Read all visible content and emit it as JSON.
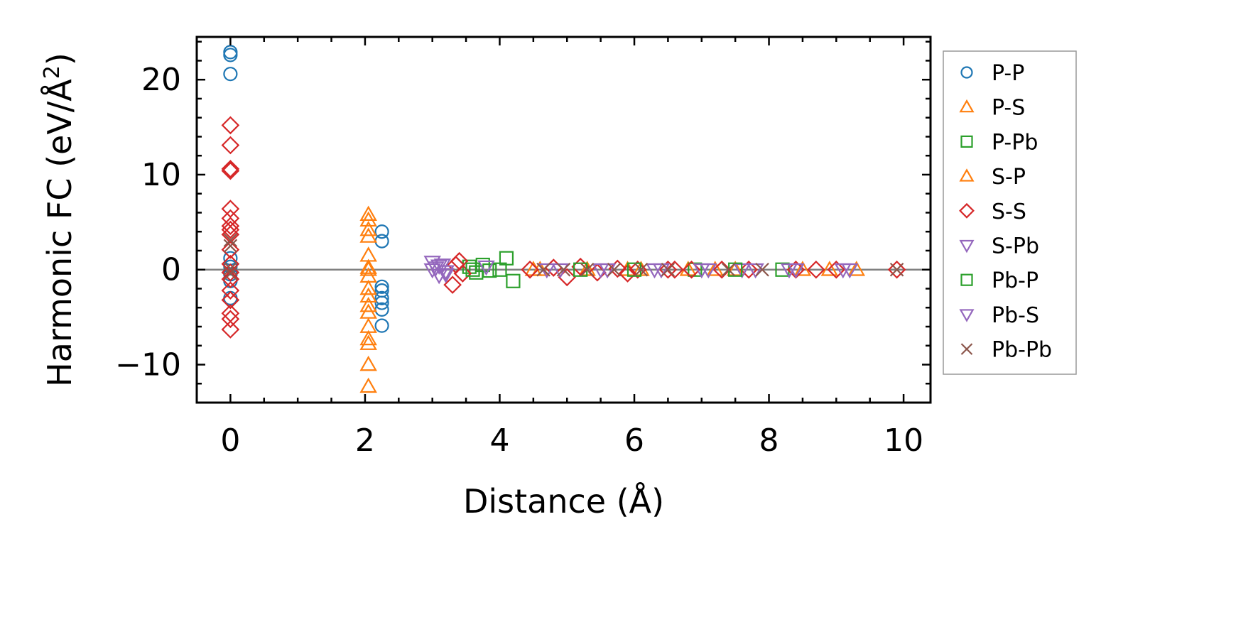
{
  "chart_data": {
    "type": "scatter",
    "title": "",
    "xlabel": "Distance (Å)",
    "ylabel_main": "Harmonic FC (eV/Å",
    "ylabel_sup": "2",
    "ylabel_end": ")",
    "xlim": [
      -0.5,
      10.4
    ],
    "ylim": [
      -14,
      24.5
    ],
    "x_ticks": [
      0,
      2,
      4,
      6,
      8,
      10
    ],
    "x_tick_labels": [
      "0",
      "2",
      "4",
      "6",
      "8",
      "10"
    ],
    "y_ticks": [
      -10,
      0,
      10,
      20
    ],
    "y_tick_labels": [
      "−10",
      "0",
      "10",
      "20"
    ],
    "x_minor_step": 0.5,
    "y_minor_step": 2,
    "grid": false,
    "zero_line": true,
    "legend_position": "outside-right",
    "colors": {
      "blue": "#1f77b4",
      "orange": "#ff7f0e",
      "green": "#2ca02c",
      "red": "#d62728",
      "purple": "#9467bd",
      "brown": "#8c564b",
      "zero_line": "#808080"
    },
    "series": [
      {
        "name": "P-P",
        "marker": "circle",
        "color": "#1f77b4",
        "points": [
          [
            0,
            22.9
          ],
          [
            0,
            22.6
          ],
          [
            0,
            20.6
          ],
          [
            0,
            1.2
          ],
          [
            0,
            0.3
          ],
          [
            0,
            -0.5
          ],
          [
            0,
            -1.2
          ],
          [
            0,
            -3.0
          ],
          [
            2.25,
            4.0
          ],
          [
            2.25,
            3.0
          ],
          [
            2.25,
            -1.8
          ],
          [
            2.25,
            -2.2
          ],
          [
            2.25,
            -3.0
          ],
          [
            2.25,
            -3.5
          ],
          [
            2.25,
            -4.2
          ],
          [
            2.25,
            -5.9
          ]
        ]
      },
      {
        "name": "P-S",
        "marker": "triangle-up",
        "color": "#ff7f0e",
        "points": [
          [
            2.05,
            5.8
          ],
          [
            2.05,
            5.2
          ],
          [
            2.05,
            4.2
          ],
          [
            2.05,
            3.5
          ],
          [
            2.05,
            1.5
          ],
          [
            2.05,
            0.2
          ],
          [
            2.05,
            -0.7
          ],
          [
            2.05,
            -2.0
          ],
          [
            2.05,
            -2.8
          ],
          [
            2.05,
            -3.8
          ],
          [
            2.05,
            -4.5
          ],
          [
            2.05,
            -6.0
          ],
          [
            2.05,
            -7.3
          ],
          [
            2.05,
            -7.8
          ],
          [
            2.05,
            -10.0
          ],
          [
            2.05,
            -12.3
          ],
          [
            4.6,
            0.0
          ],
          [
            5.3,
            0.0
          ],
          [
            6.1,
            0.0
          ],
          [
            6.8,
            0.0
          ],
          [
            7.5,
            0.0
          ],
          [
            8.5,
            0.0
          ],
          [
            9.3,
            0.0
          ]
        ]
      },
      {
        "name": "P-Pb",
        "marker": "square",
        "color": "#2ca02c",
        "points": [
          [
            3.55,
            0.3
          ],
          [
            3.65,
            -0.3
          ],
          [
            3.75,
            0.5
          ],
          [
            3.85,
            -0.1
          ],
          [
            4.0,
            0.0
          ],
          [
            6.9,
            0.0
          ],
          [
            8.2,
            0.0
          ]
        ]
      },
      {
        "name": "S-P",
        "marker": "triangle-up",
        "color": "#ff7f0e",
        "points": [
          [
            2.05,
            0.0
          ],
          [
            4.5,
            0.0
          ],
          [
            5.9,
            0.0
          ],
          [
            7.2,
            0.0
          ],
          [
            8.9,
            0.0
          ]
        ]
      },
      {
        "name": "S-S",
        "marker": "diamond",
        "color": "#d62728",
        "points": [
          [
            0,
            15.2
          ],
          [
            0,
            13.1
          ],
          [
            0,
            10.6
          ],
          [
            0,
            10.4
          ],
          [
            0,
            6.4
          ],
          [
            0,
            5.4
          ],
          [
            0,
            4.6
          ],
          [
            0,
            4.2
          ],
          [
            0,
            3.7
          ],
          [
            0,
            2.1
          ],
          [
            0,
            0.6
          ],
          [
            0,
            -0.3
          ],
          [
            0,
            -1.0
          ],
          [
            0,
            -2.2
          ],
          [
            0,
            -3.2
          ],
          [
            0,
            -4.6
          ],
          [
            0,
            -5.2
          ],
          [
            0,
            -6.3
          ],
          [
            3.3,
            -1.6
          ],
          [
            3.35,
            0.5
          ],
          [
            3.4,
            0.9
          ],
          [
            3.45,
            -0.4
          ],
          [
            4.45,
            0.0
          ],
          [
            4.8,
            0.2
          ],
          [
            5.0,
            -0.8
          ],
          [
            5.2,
            0.3
          ],
          [
            5.45,
            -0.3
          ],
          [
            5.75,
            0.1
          ],
          [
            5.9,
            -0.4
          ],
          [
            6.05,
            0.0
          ],
          [
            6.5,
            0.0
          ],
          [
            6.6,
            0.0
          ],
          [
            6.85,
            0.0
          ],
          [
            7.3,
            0.0
          ],
          [
            7.7,
            0.0
          ],
          [
            8.4,
            0.0
          ],
          [
            8.7,
            0.0
          ],
          [
            9.0,
            0.0
          ],
          [
            9.9,
            0.0
          ]
        ]
      },
      {
        "name": "S-Pb",
        "marker": "triangle-down",
        "color": "#9467bd",
        "points": [
          [
            3.0,
            0.8
          ],
          [
            3.05,
            0.2
          ],
          [
            3.1,
            -0.6
          ],
          [
            3.15,
            0.5
          ],
          [
            3.2,
            -0.2
          ],
          [
            3.8,
            0.3
          ],
          [
            4.7,
            0.0
          ],
          [
            5.6,
            0.0
          ],
          [
            6.3,
            0.0
          ],
          [
            7.0,
            0.0
          ],
          [
            7.6,
            0.0
          ],
          [
            8.3,
            0.0
          ],
          [
            9.2,
            0.0
          ]
        ]
      },
      {
        "name": "Pb-P",
        "marker": "square",
        "color": "#2ca02c",
        "points": [
          [
            3.6,
            0.0
          ],
          [
            4.1,
            1.2
          ],
          [
            4.2,
            -1.2
          ],
          [
            5.2,
            0.0
          ],
          [
            6.0,
            0.0
          ],
          [
            7.5,
            0.0
          ]
        ]
      },
      {
        "name": "Pb-S",
        "marker": "triangle-down",
        "color": "#9467bd",
        "points": [
          [
            3.0,
            0.0
          ],
          [
            3.1,
            0.4
          ],
          [
            3.2,
            -0.5
          ],
          [
            4.9,
            0.0
          ],
          [
            5.5,
            0.0
          ],
          [
            6.4,
            0.0
          ],
          [
            7.1,
            0.0
          ],
          [
            7.8,
            0.0
          ],
          [
            8.4,
            0.0
          ],
          [
            9.1,
            0.0
          ]
        ]
      },
      {
        "name": "Pb-Pb",
        "marker": "x",
        "color": "#8c564b",
        "points": [
          [
            0,
            3.1
          ],
          [
            0,
            2.5
          ],
          [
            0,
            0.1
          ],
          [
            0,
            -0.4
          ],
          [
            4.65,
            0.0
          ],
          [
            4.95,
            0.0
          ],
          [
            5.3,
            0.0
          ],
          [
            5.7,
            0.0
          ],
          [
            6.1,
            0.0
          ],
          [
            6.5,
            0.0
          ],
          [
            7.4,
            0.0
          ],
          [
            7.9,
            0.0
          ],
          [
            9.9,
            0.0
          ]
        ]
      }
    ]
  }
}
